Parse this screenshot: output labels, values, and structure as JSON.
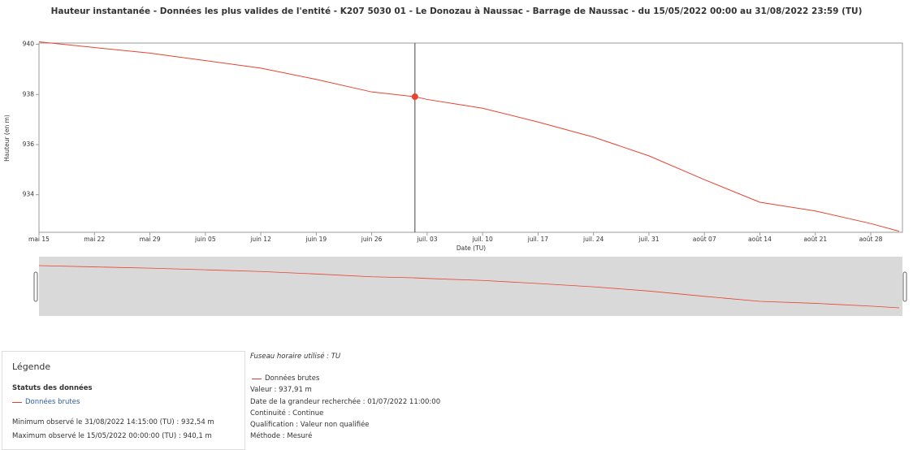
{
  "chart_data": {
    "type": "line",
    "title": "Hauteur instantanée - Données les plus valides de l'entité - K207 5030 01 - Le Donozau à Naussac - Barrage de Naussac - du 15/05/2022 00:00 au 31/08/2022 23:59 (TU)",
    "x_label": "Date (TU)",
    "y_label": "Hauteur (en m)",
    "x": [
      "2022-05-15",
      "2022-05-22",
      "2022-05-29",
      "2022-06-05",
      "2022-06-12",
      "2022-06-19",
      "2022-06-26",
      "2022-07-01T11:00",
      "2022-07-03",
      "2022-07-10",
      "2022-07-17",
      "2022-07-24",
      "2022-07-31",
      "2022-08-07",
      "2022-08-14",
      "2022-08-21",
      "2022-08-28",
      "2022-08-31T14:15"
    ],
    "series": [
      {
        "name": "Données brutes",
        "color": "#e8432e",
        "values": [
          940.1,
          939.87,
          939.65,
          939.35,
          939.05,
          938.6,
          938.1,
          937.91,
          937.8,
          937.45,
          936.9,
          936.3,
          935.55,
          934.6,
          933.7,
          933.35,
          932.85,
          932.54
        ]
      }
    ],
    "highlight_index": 7,
    "xlim": [
      "2022-05-15",
      "2022-08-31T23:59"
    ],
    "xticks": [
      {
        "value": "2022-05-15",
        "label": "mai 15"
      },
      {
        "value": "2022-05-22",
        "label": "mai 22"
      },
      {
        "value": "2022-05-29",
        "label": "mai 29"
      },
      {
        "value": "2022-06-05",
        "label": "juin 05"
      },
      {
        "value": "2022-06-12",
        "label": "juin 12"
      },
      {
        "value": "2022-06-19",
        "label": "juin 19"
      },
      {
        "value": "2022-06-26",
        "label": "juin 26"
      },
      {
        "value": "2022-07-03",
        "label": "juil. 03"
      },
      {
        "value": "2022-07-10",
        "label": "juil. 10"
      },
      {
        "value": "2022-07-17",
        "label": "juil. 17"
      },
      {
        "value": "2022-07-24",
        "label": "juil. 24"
      },
      {
        "value": "2022-07-31",
        "label": "juil. 31"
      },
      {
        "value": "2022-08-07",
        "label": "août 07"
      },
      {
        "value": "2022-08-14",
        "label": "août 14"
      },
      {
        "value": "2022-08-21",
        "label": "août 21"
      },
      {
        "value": "2022-08-28",
        "label": "août 28"
      }
    ],
    "ylim": [
      932.5,
      940.05
    ],
    "yticks": [
      934,
      936,
      938,
      940
    ]
  },
  "legend_panel": {
    "title": "Légende",
    "section": "Statuts des données",
    "entry": "Données brutes",
    "minimum": "Minimum observé le 31/08/2022 14:15:00 (TU) : 932,54 m",
    "maximum": "Maximum observé le 15/05/2022 00:00:00 (TU) : 940,1 m"
  },
  "tooltip_panel": {
    "timezone": "Fuseau horaire utilisé : TU",
    "series": "Données brutes",
    "value": "Valeur : 937,91 m",
    "date": "Date de la grandeur recherchée : 01/07/2022 11:00:00",
    "continuity": "Continuité : Continue",
    "qualification": "Qualification : Valeur non qualifiée",
    "method": "Méthode : Mesuré"
  }
}
